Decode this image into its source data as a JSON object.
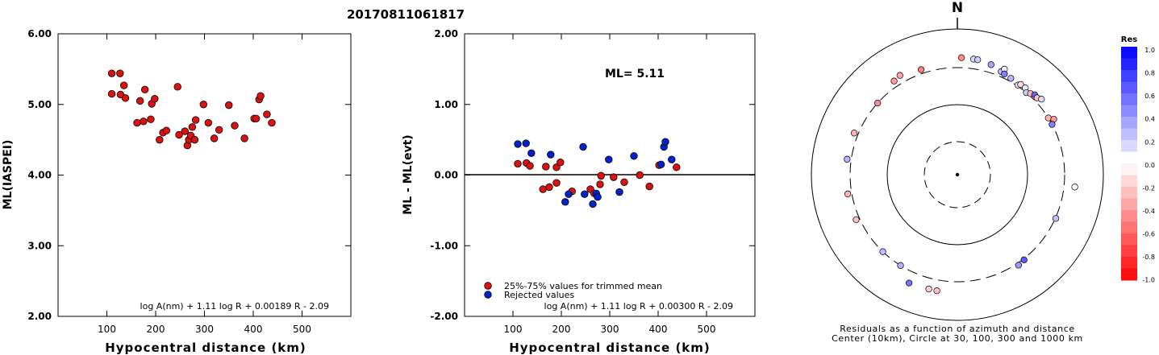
{
  "title": "20170811061817",
  "colors": {
    "accepted": "#dd1111",
    "rejected": "#0022cc",
    "residual_positive": "#0000ff",
    "residual_negative": "#ff0000"
  },
  "chart_data": [
    {
      "type": "scatter",
      "ylabel": "ML(IASPEI)",
      "xlabel": "Hypocentral distance (km)",
      "xlim": [
        0,
        600
      ],
      "ylim": [
        2.0,
        6.0
      ],
      "x_ticks": [
        "100",
        "200",
        "300",
        "400",
        "500"
      ],
      "y_ticks": [
        "2.00",
        "3.00",
        "4.00",
        "5.00",
        "6.00"
      ],
      "formula": "log A(nm) + 1.11 log R + 0.00189 R - 2.09",
      "series": [
        {
          "points": [
            [
              110,
              5.44
            ],
            [
              127,
              5.44
            ],
            [
              110,
              5.15
            ],
            [
              128,
              5.14
            ],
            [
              135,
              5.27
            ],
            [
              138,
              5.09
            ],
            [
              162,
              4.74
            ],
            [
              168,
              5.05
            ],
            [
              175,
              4.76
            ],
            [
              178,
              5.21
            ],
            [
              190,
              4.79
            ],
            [
              192,
              5.01
            ],
            [
              198,
              5.08
            ],
            [
              208,
              4.5
            ],
            [
              215,
              4.6
            ],
            [
              222,
              4.63
            ],
            [
              245,
              5.25
            ],
            [
              248,
              4.57
            ],
            [
              260,
              4.62
            ],
            [
              265,
              4.42
            ],
            [
              268,
              4.5
            ],
            [
              272,
              4.56
            ],
            [
              275,
              4.68
            ],
            [
              280,
              4.5
            ],
            [
              282,
              4.78
            ],
            [
              298,
              5.0
            ],
            [
              308,
              4.74
            ],
            [
              320,
              4.52
            ],
            [
              330,
              4.64
            ],
            [
              350,
              4.99
            ],
            [
              362,
              4.7
            ],
            [
              382,
              4.52
            ],
            [
              402,
              4.8
            ],
            [
              406,
              4.8
            ],
            [
              412,
              5.07
            ],
            [
              415,
              5.12
            ],
            [
              428,
              4.86
            ],
            [
              438,
              4.74
            ]
          ]
        }
      ]
    },
    {
      "type": "scatter",
      "ylabel": "ML - ML(evt)",
      "xlabel": "Hypocentral distance (km)",
      "xlim": [
        0,
        600
      ],
      "ylim": [
        -2.0,
        2.0
      ],
      "x_ticks": [
        "100",
        "200",
        "300",
        "400",
        "500"
      ],
      "y_ticks": [
        "-2.00",
        "-1.00",
        "0.00",
        "1.00",
        "2.00"
      ],
      "annotation": "ML= 5.11",
      "legend": [
        "25%-75% values for trimmed mean",
        "Rejected values"
      ],
      "legend_position": "bottom-left",
      "formula": "log A(nm) + 1.11 log R + 0.00300 R - 2.09",
      "series": [
        {
          "name": "25%-75% values for trimmed mean",
          "points": [
            [
              110,
              0.16
            ],
            [
              128,
              0.17
            ],
            [
              135,
              0.13
            ],
            [
              168,
              0.12
            ],
            [
              190,
              0.11
            ],
            [
              198,
              0.18
            ],
            [
              162,
              -0.2
            ],
            [
              175,
              -0.17
            ],
            [
              190,
              -0.11
            ],
            [
              222,
              -0.23
            ],
            [
              260,
              -0.2
            ],
            [
              268,
              -0.26
            ],
            [
              280,
              -0.13
            ],
            [
              282,
              -0.01
            ],
            [
              308,
              -0.03
            ],
            [
              330,
              -0.1
            ],
            [
              362,
              0.0
            ],
            [
              382,
              -0.16
            ],
            [
              402,
              0.14
            ],
            [
              438,
              0.11
            ]
          ]
        },
        {
          "name": "Rejected values",
          "points": [
            [
              110,
              0.44
            ],
            [
              127,
              0.45
            ],
            [
              138,
              0.31
            ],
            [
              178,
              0.29
            ],
            [
              208,
              -0.38
            ],
            [
              215,
              -0.27
            ],
            [
              245,
              0.4
            ],
            [
              248,
              -0.27
            ],
            [
              265,
              -0.41
            ],
            [
              272,
              -0.26
            ],
            [
              275,
              -0.31
            ],
            [
              298,
              0.22
            ],
            [
              320,
              -0.24
            ],
            [
              350,
              0.27
            ],
            [
              406,
              0.15
            ],
            [
              412,
              0.4
            ],
            [
              415,
              0.47
            ],
            [
              428,
              0.22
            ]
          ]
        }
      ]
    },
    {
      "type": "polar-scatter",
      "north_label": "N",
      "caption_lines": [
        "Residuals as a function of azimuth and distance",
        "Center (10km), Circle at 30, 100, 300 and 1000 km"
      ],
      "rings_km": [
        30,
        100,
        300,
        1000
      ],
      "colorbar": {
        "title": "Res",
        "labels": [
          "1.0",
          "0.8",
          "0.6",
          "0.4",
          "0.2",
          "0.0",
          "-0.2",
          "-0.4",
          "-0.6",
          "-0.8",
          "-1.0"
        ]
      },
      "points": [
        {
          "az": 2,
          "dist": 410,
          "res": -0.45
        },
        {
          "az": 8,
          "dist": 405,
          "res": 0.15
        },
        {
          "az": 10,
          "dist": 405,
          "res": 0.2
        },
        {
          "az": 17,
          "dist": 385,
          "res": 0.35
        },
        {
          "az": 23,
          "dist": 350,
          "res": 0.25
        },
        {
          "az": 24,
          "dist": 390,
          "res": 0.05
        },
        {
          "az": 25,
          "dist": 340,
          "res": 0.5
        },
        {
          "az": 29,
          "dist": 330,
          "res": 0.3
        },
        {
          "az": 34,
          "dist": 310,
          "res": 0.1
        },
        {
          "az": 35,
          "dist": 330,
          "res": -0.15
        },
        {
          "az": 38,
          "dist": 330,
          "res": 0.05
        },
        {
          "az": 40,
          "dist": 300,
          "res": 0.2
        },
        {
          "az": 42,
          "dist": 320,
          "res": -0.3
        },
        {
          "az": 44,
          "dist": 340,
          "res": 0.6
        },
        {
          "az": 46,
          "dist": 335,
          "res": -0.25
        },
        {
          "az": 48,
          "dist": 360,
          "res": 0.15
        },
        {
          "az": 58,
          "dist": 300,
          "res": -0.3
        },
        {
          "az": 60,
          "dist": 340,
          "res": -0.4
        },
        {
          "az": 62,
          "dist": 300,
          "res": 0.5
        },
        {
          "az": 96,
          "dist": 420,
          "res": 0.0
        },
        {
          "az": 114,
          "dist": 305,
          "res": 0.25
        },
        {
          "az": 142,
          "dist": 310,
          "res": 0.65
        },
        {
          "az": 146,
          "dist": 320,
          "res": 0.4
        },
        {
          "az": 190,
          "dist": 420,
          "res": -0.25
        },
        {
          "az": 194,
          "dist": 420,
          "res": -0.2
        },
        {
          "az": 204,
          "dist": 430,
          "res": 0.55
        },
        {
          "az": 212,
          "dist": 300,
          "res": 0.3
        },
        {
          "az": 224,
          "dist": 300,
          "res": 0.25
        },
        {
          "az": 246,
          "dist": 335,
          "res": -0.25
        },
        {
          "az": 260,
          "dist": 340,
          "res": -0.3
        },
        {
          "az": 278,
          "dist": 340,
          "res": 0.3
        },
        {
          "az": 292,
          "dist": 340,
          "res": -0.3
        },
        {
          "az": 312,
          "dist": 300,
          "res": -0.45
        },
        {
          "az": 326,
          "dist": 360,
          "res": -0.4
        },
        {
          "az": 330,
          "dist": 380,
          "res": -0.35
        },
        {
          "az": 341,
          "dist": 340,
          "res": -0.5
        }
      ]
    }
  ]
}
